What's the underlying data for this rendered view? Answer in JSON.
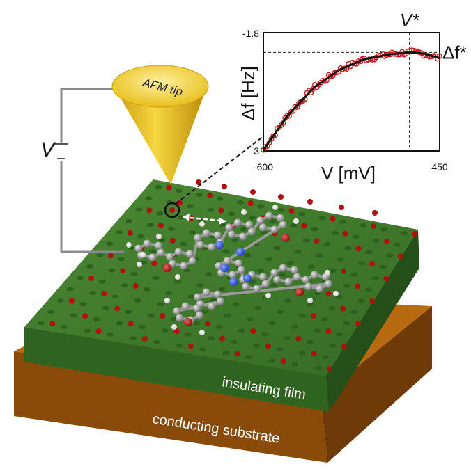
{
  "labels": {
    "tip": "AFM tip",
    "voltage": "V",
    "insulating": "insulating film",
    "conducting": "conducting substrate"
  },
  "chart_data": {
    "type": "line",
    "xlabel": "V [mV]",
    "ylabel": "Δf [Hz]",
    "xlim": [
      -600,
      450
    ],
    "ylim": [
      -3,
      -1.8
    ],
    "x_ticks": [
      "-600",
      "450"
    ],
    "y_ticks": [
      "-1.8",
      "-3"
    ],
    "annotations": {
      "v_star": "V*",
      "df_star": "Δf*"
    },
    "vertex": {
      "x": 270,
      "y": -2.0
    },
    "series": [
      {
        "x": [
          -600,
          -450,
          -300,
          -150,
          0,
          150,
          270,
          350,
          450
        ],
        "y": [
          -2.99,
          -2.63,
          -2.36,
          -2.18,
          -2.07,
          -2.02,
          -2.0,
          -2.01,
          -2.06
        ]
      }
    ],
    "colors": {
      "data": "#d01818",
      "fit": "#111111"
    }
  },
  "colors": {
    "film_top": "#3f7a2b",
    "film_side": "#2f6320",
    "substrate_top": "#b86a10",
    "substrate_side": "#8a4a0a",
    "tip": "#f2cc2b",
    "atom_red": "#b0100e",
    "carbon": "#8c8c8c",
    "nitrogen": "#2b4fd8",
    "oxygen": "#b0100e",
    "hydrogen": "#ffffff"
  }
}
